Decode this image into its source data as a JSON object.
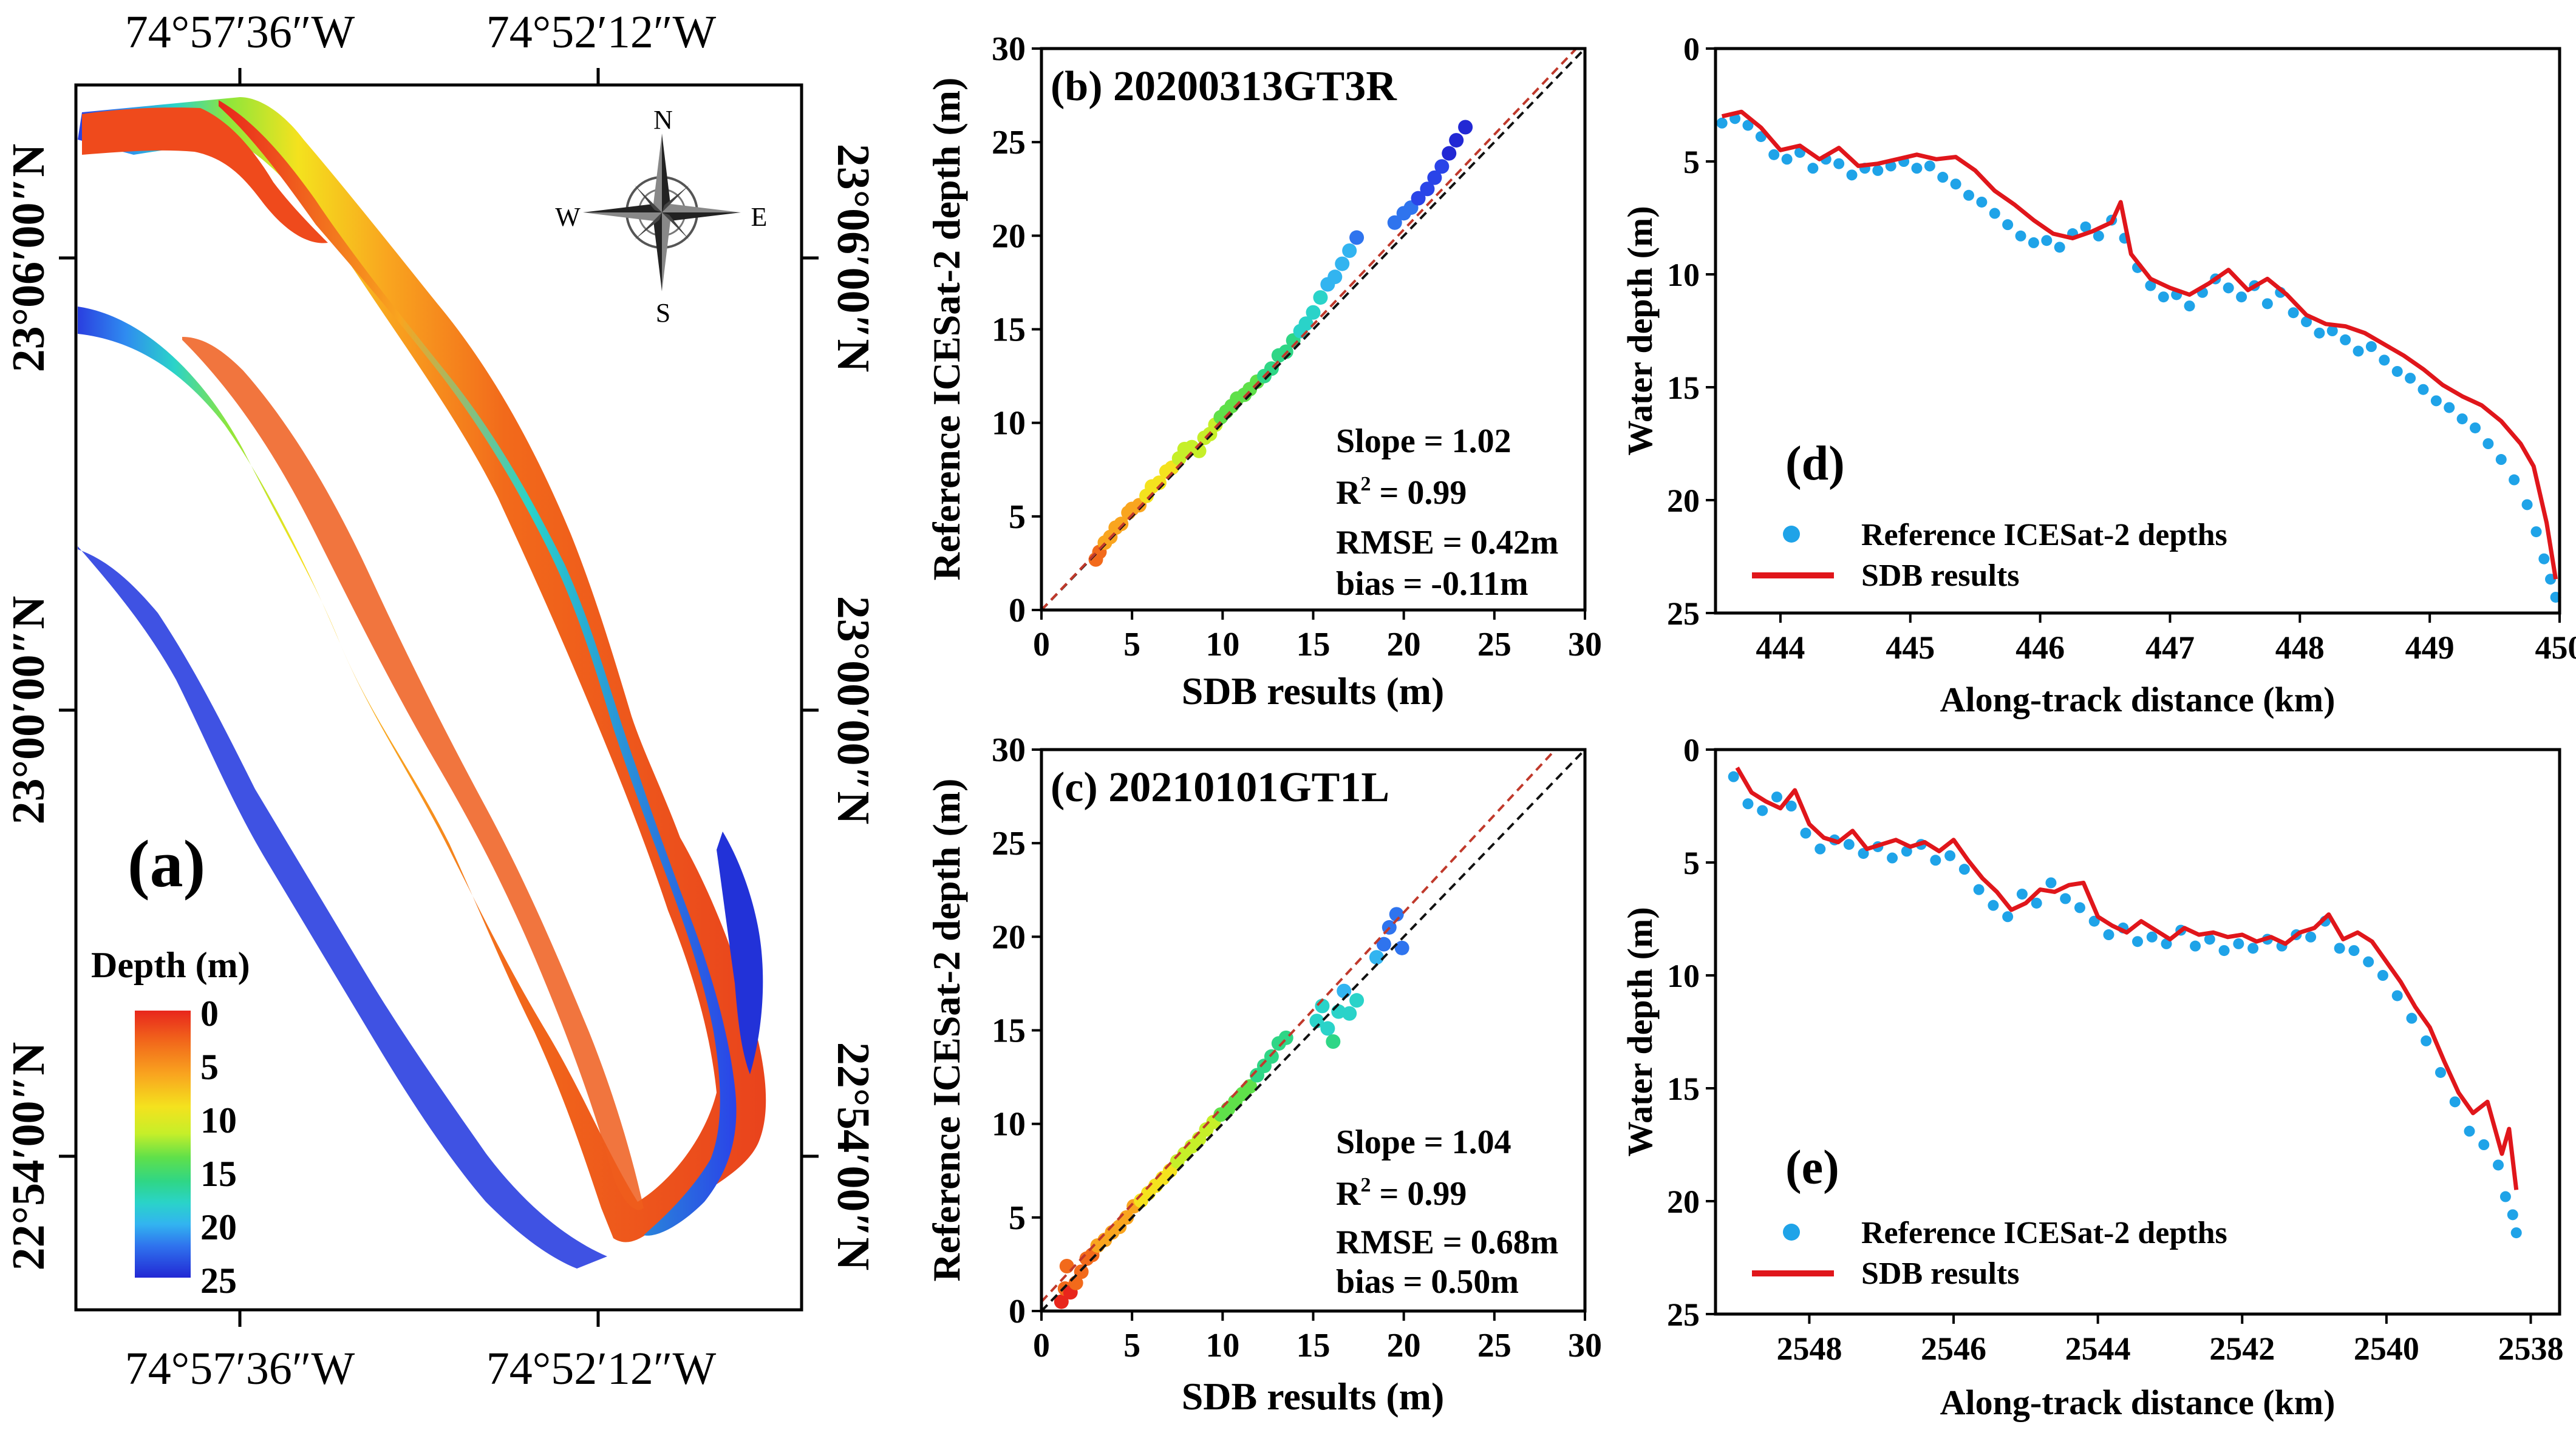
{
  "colors": {
    "ramp": [
      "#e8261c",
      "#f26a1b",
      "#f9a51f",
      "#f4e21e",
      "#c6ef29",
      "#5fe04a",
      "#2fd686",
      "#2ad3c9",
      "#32b4f0",
      "#2f74ee",
      "#2a44e8",
      "#2228d4"
    ],
    "ref_points": "#1fa3e8",
    "sdb_line": "#e0161b",
    "fit_line": "#c0392b",
    "one_to_one": "#111111"
  },
  "panel_a": {
    "label": "(a)",
    "top_lon_labels": [
      "74°57′36″W",
      "74°52′12″W"
    ],
    "bottom_lon_labels": [
      "74°57′36″W",
      "74°52′12″W"
    ],
    "left_lat_labels": [
      "23°06′00″N",
      "23°00′00″N",
      "22°54′00″N"
    ],
    "right_lat_labels": [
      "23°06′00″N",
      "23°00′00″N",
      "22°54′00″N"
    ],
    "compass": {
      "n": "N",
      "s": "S",
      "e": "E",
      "w": "W"
    },
    "legend_title": "Depth (m)",
    "legend_ticks": [
      "0",
      "5",
      "10",
      "15",
      "20",
      "25"
    ]
  },
  "chart_data": [
    {
      "id": "b",
      "type": "scatter",
      "title": "(b) 20200313GT3R",
      "xlabel": "SDB results (m)",
      "ylabel": "Reference ICESat-2 depth (m)",
      "xlim": [
        0,
        30
      ],
      "ylim": [
        0,
        30
      ],
      "xticks": [
        0,
        5,
        10,
        15,
        20,
        25,
        30
      ],
      "yticks": [
        0,
        5,
        10,
        15,
        20,
        25,
        30
      ],
      "stats": [
        "Slope = 1.02",
        "R",
        "2",
        " = 0.99",
        "RMSE = 0.42m",
        "bias = -0.11m"
      ],
      "fit": {
        "slope": 1.02,
        "intercept": -0.11
      },
      "points": [
        [
          3.0,
          2.7
        ],
        [
          3.2,
          3.1
        ],
        [
          3.5,
          3.6
        ],
        [
          3.8,
          3.9
        ],
        [
          4.1,
          4.4
        ],
        [
          4.4,
          4.6
        ],
        [
          4.8,
          5.2
        ],
        [
          5.0,
          5.4
        ],
        [
          5.4,
          5.6
        ],
        [
          5.8,
          6.1
        ],
        [
          6.1,
          6.6
        ],
        [
          6.5,
          6.8
        ],
        [
          6.9,
          7.4
        ],
        [
          7.2,
          7.6
        ],
        [
          7.6,
          8.1
        ],
        [
          7.9,
          8.6
        ],
        [
          8.3,
          8.7
        ],
        [
          8.7,
          8.5
        ],
        [
          9.0,
          9.2
        ],
        [
          9.3,
          9.4
        ],
        [
          9.6,
          9.9
        ],
        [
          9.9,
          10.3
        ],
        [
          10.2,
          10.6
        ],
        [
          10.5,
          10.9
        ],
        [
          10.8,
          11.3
        ],
        [
          11.2,
          11.5
        ],
        [
          11.5,
          11.8
        ],
        [
          11.9,
          12.2
        ],
        [
          12.3,
          12.5
        ],
        [
          12.7,
          12.9
        ],
        [
          13.1,
          13.6
        ],
        [
          13.5,
          13.8
        ],
        [
          13.9,
          14.4
        ],
        [
          14.3,
          14.9
        ],
        [
          14.6,
          15.3
        ],
        [
          15.0,
          15.9
        ],
        [
          15.4,
          16.7
        ],
        [
          15.8,
          17.4
        ],
        [
          16.2,
          17.8
        ],
        [
          16.6,
          18.5
        ],
        [
          17.0,
          19.2
        ],
        [
          17.4,
          19.9
        ],
        [
          19.5,
          20.7
        ],
        [
          20.0,
          21.2
        ],
        [
          20.4,
          21.5
        ],
        [
          20.8,
          22.0
        ],
        [
          21.3,
          22.5
        ],
        [
          21.7,
          23.1
        ],
        [
          22.1,
          23.7
        ],
        [
          22.5,
          24.4
        ],
        [
          22.9,
          25.1
        ],
        [
          23.4,
          25.8
        ]
      ]
    },
    {
      "id": "c",
      "type": "scatter",
      "title": "(c) 20210101GT1L",
      "xlabel": "SDB results (m)",
      "ylabel": "Reference ICESat-2 depth (m)",
      "xlim": [
        0,
        30
      ],
      "ylim": [
        0,
        30
      ],
      "xticks": [
        0,
        5,
        10,
        15,
        20,
        25,
        30
      ],
      "yticks": [
        0,
        5,
        10,
        15,
        20,
        25,
        30
      ],
      "stats": [
        "Slope = 1.04",
        "R",
        "2",
        " = 0.99",
        "RMSE = 0.68m",
        "bias = 0.50m"
      ],
      "fit": {
        "slope": 1.04,
        "intercept": 0.5
      },
      "points": [
        [
          1.1,
          0.5
        ],
        [
          1.3,
          1.2
        ],
        [
          1.4,
          2.4
        ],
        [
          1.6,
          1.0
        ],
        [
          1.9,
          1.5
        ],
        [
          2.2,
          2.1
        ],
        [
          2.5,
          2.8
        ],
        [
          2.8,
          3.0
        ],
        [
          3.1,
          3.5
        ],
        [
          3.5,
          3.8
        ],
        [
          3.9,
          4.2
        ],
        [
          4.3,
          4.5
        ],
        [
          4.7,
          5.0
        ],
        [
          5.1,
          5.6
        ],
        [
          5.5,
          5.9
        ],
        [
          5.9,
          6.3
        ],
        [
          6.3,
          6.7
        ],
        [
          6.7,
          7.1
        ],
        [
          7.1,
          7.5
        ],
        [
          7.5,
          8.0
        ],
        [
          7.9,
          8.4
        ],
        [
          8.3,
          8.8
        ],
        [
          8.7,
          9.2
        ],
        [
          9.1,
          9.7
        ],
        [
          9.5,
          10.1
        ],
        [
          9.9,
          10.5
        ],
        [
          10.3,
          10.8
        ],
        [
          10.7,
          11.2
        ],
        [
          11.1,
          11.6
        ],
        [
          11.5,
          12.0
        ],
        [
          11.9,
          12.6
        ],
        [
          12.3,
          13.1
        ],
        [
          12.7,
          13.6
        ],
        [
          13.1,
          14.3
        ],
        [
          13.5,
          14.6
        ],
        [
          15.2,
          15.5
        ],
        [
          15.5,
          16.3
        ],
        [
          15.8,
          15.1
        ],
        [
          16.1,
          14.4
        ],
        [
          16.4,
          16.0
        ],
        [
          16.7,
          17.1
        ],
        [
          17.0,
          15.9
        ],
        [
          17.4,
          16.6
        ],
        [
          18.5,
          18.9
        ],
        [
          18.9,
          19.6
        ],
        [
          19.2,
          20.5
        ],
        [
          19.6,
          21.2
        ],
        [
          19.9,
          19.4
        ]
      ]
    },
    {
      "id": "d",
      "type": "line",
      "xlabel": "Along-track distance (km)",
      "ylabel": "Water depth (m)",
      "xlim": [
        443.5,
        450
      ],
      "ylim": [
        0,
        25
      ],
      "y_inverted": true,
      "xticks": [
        444,
        445,
        446,
        447,
        448,
        449,
        450
      ],
      "yticks": [
        0,
        5,
        10,
        15,
        20,
        25
      ],
      "label": "(d)",
      "legend": [
        "Reference ICESat-2 depths",
        "SDB results"
      ],
      "series": [
        {
          "name": "SDB results",
          "x": [
            443.55,
            443.7,
            443.85,
            444.0,
            444.15,
            444.3,
            444.45,
            444.6,
            444.75,
            444.9,
            445.05,
            445.2,
            445.35,
            445.5,
            445.65,
            445.8,
            445.95,
            446.1,
            446.25,
            446.4,
            446.55,
            446.62,
            446.7,
            446.85,
            447.0,
            447.15,
            447.3,
            447.45,
            447.6,
            447.75,
            447.9,
            448.05,
            448.2,
            448.35,
            448.5,
            448.65,
            448.8,
            448.95,
            449.1,
            449.25,
            449.4,
            449.55,
            449.7,
            449.8,
            449.9,
            449.97
          ],
          "y": [
            3.0,
            2.8,
            3.5,
            4.5,
            4.3,
            4.9,
            4.4,
            5.2,
            5.1,
            4.9,
            4.7,
            4.9,
            4.8,
            5.4,
            6.3,
            6.9,
            7.6,
            8.2,
            8.4,
            8.1,
            7.7,
            6.8,
            9.1,
            10.2,
            10.6,
            10.9,
            10.4,
            9.8,
            10.7,
            10.2,
            10.9,
            11.8,
            12.2,
            12.3,
            12.6,
            13.1,
            13.6,
            14.2,
            14.9,
            15.4,
            15.8,
            16.5,
            17.5,
            18.5,
            21.0,
            23.5
          ]
        },
        {
          "name": "Reference ICESat-2 depths",
          "x": [
            443.55,
            443.65,
            443.75,
            443.85,
            443.95,
            444.05,
            444.15,
            444.25,
            444.35,
            444.45,
            444.55,
            444.65,
            444.75,
            444.85,
            444.95,
            445.05,
            445.15,
            445.25,
            445.35,
            445.45,
            445.55,
            445.65,
            445.75,
            445.85,
            445.95,
            446.05,
            446.15,
            446.25,
            446.35,
            446.45,
            446.55,
            446.65,
            446.75,
            446.85,
            446.95,
            447.05,
            447.15,
            447.25,
            447.35,
            447.45,
            447.55,
            447.65,
            447.75,
            447.85,
            447.95,
            448.05,
            448.15,
            448.25,
            448.35,
            448.45,
            448.55,
            448.65,
            448.75,
            448.85,
            448.95,
            449.05,
            449.15,
            449.25,
            449.35,
            449.45,
            449.55,
            449.65,
            449.75,
            449.82,
            449.88,
            449.93,
            449.97
          ],
          "y": [
            3.3,
            3.1,
            3.4,
            3.9,
            4.7,
            4.9,
            4.6,
            5.3,
            4.9,
            5.1,
            5.6,
            5.3,
            5.4,
            5.2,
            5.0,
            5.3,
            5.2,
            5.7,
            6.0,
            6.5,
            6.8,
            7.3,
            7.8,
            8.3,
            8.6,
            8.5,
            8.8,
            8.2,
            7.9,
            8.3,
            7.6,
            8.4,
            9.7,
            10.5,
            11.0,
            10.9,
            11.4,
            10.8,
            10.2,
            10.6,
            11.0,
            10.5,
            11.3,
            10.8,
            11.7,
            12.1,
            12.6,
            12.5,
            12.9,
            13.4,
            13.2,
            13.8,
            14.3,
            14.6,
            15.1,
            15.6,
            15.9,
            16.4,
            16.8,
            17.5,
            18.2,
            19.1,
            20.2,
            21.4,
            22.6,
            23.5,
            24.3
          ]
        }
      ]
    },
    {
      "id": "e",
      "type": "line",
      "xlabel": "Along-track distance (km)",
      "ylabel": "Water depth (m)",
      "xlim": [
        2549.3,
        2537.6
      ],
      "ylim": [
        0,
        25
      ],
      "y_inverted": true,
      "xticks": [
        2548,
        2546,
        2544,
        2542,
        2540,
        2538
      ],
      "yticks": [
        0,
        5,
        10,
        15,
        20,
        25
      ],
      "label": "(e)",
      "legend": [
        "Reference ICESat-2 depths",
        "SDB results"
      ],
      "series": [
        {
          "name": "SDB results",
          "x": [
            2549.0,
            2548.8,
            2548.6,
            2548.4,
            2548.2,
            2548.0,
            2547.8,
            2547.6,
            2547.4,
            2547.2,
            2547.0,
            2546.8,
            2546.6,
            2546.4,
            2546.2,
            2546.0,
            2545.8,
            2545.6,
            2545.4,
            2545.2,
            2545.0,
            2544.8,
            2544.6,
            2544.4,
            2544.2,
            2544.0,
            2543.8,
            2543.6,
            2543.4,
            2543.2,
            2543.0,
            2542.8,
            2542.6,
            2542.4,
            2542.2,
            2542.0,
            2541.8,
            2541.6,
            2541.4,
            2541.2,
            2541.0,
            2540.8,
            2540.6,
            2540.4,
            2540.2,
            2540.0,
            2539.8,
            2539.6,
            2539.4,
            2539.2,
            2539.0,
            2538.8,
            2538.6,
            2538.4,
            2538.3,
            2538.2
          ],
          "y": [
            0.8,
            1.9,
            2.3,
            2.6,
            1.8,
            3.3,
            3.9,
            4.1,
            3.6,
            4.4,
            4.2,
            4.0,
            4.3,
            4.1,
            4.5,
            4.0,
            4.9,
            5.7,
            6.3,
            7.1,
            6.8,
            6.2,
            6.3,
            6.0,
            5.9,
            7.4,
            7.8,
            8.1,
            7.6,
            8.0,
            8.4,
            7.9,
            8.2,
            8.1,
            8.3,
            8.2,
            8.5,
            8.3,
            8.6,
            8.1,
            7.9,
            7.3,
            8.4,
            8.1,
            8.5,
            9.4,
            10.3,
            11.4,
            12.3,
            13.8,
            15.2,
            16.1,
            15.6,
            17.9,
            16.8,
            19.5
          ]
        },
        {
          "name": "Reference ICESat-2 depths",
          "x": [
            2549.05,
            2548.85,
            2548.65,
            2548.45,
            2548.25,
            2548.05,
            2547.85,
            2547.65,
            2547.45,
            2547.25,
            2547.05,
            2546.85,
            2546.65,
            2546.45,
            2546.25,
            2546.05,
            2545.85,
            2545.65,
            2545.45,
            2545.25,
            2545.05,
            2544.85,
            2544.65,
            2544.45,
            2544.25,
            2544.05,
            2543.85,
            2543.65,
            2543.45,
            2543.25,
            2543.05,
            2542.85,
            2542.65,
            2542.45,
            2542.25,
            2542.05,
            2541.85,
            2541.65,
            2541.45,
            2541.25,
            2541.05,
            2540.85,
            2540.65,
            2540.45,
            2540.25,
            2540.05,
            2539.85,
            2539.65,
            2539.45,
            2539.25,
            2539.05,
            2538.85,
            2538.65,
            2538.45,
            2538.35,
            2538.25,
            2538.2
          ],
          "y": [
            1.2,
            2.4,
            2.7,
            2.1,
            2.5,
            3.7,
            4.4,
            4.0,
            4.2,
            4.6,
            4.3,
            4.8,
            4.5,
            4.2,
            4.9,
            4.7,
            5.3,
            6.2,
            6.9,
            7.4,
            6.4,
            6.8,
            5.9,
            6.6,
            7.0,
            7.6,
            8.2,
            7.9,
            8.5,
            8.3,
            8.6,
            8.0,
            8.7,
            8.4,
            8.9,
            8.6,
            8.8,
            8.4,
            8.7,
            8.2,
            8.3,
            7.6,
            8.8,
            8.9,
            9.4,
            10.0,
            10.9,
            11.9,
            12.9,
            14.3,
            15.6,
            16.9,
            17.5,
            18.4,
            19.8,
            20.6,
            21.4
          ]
        }
      ]
    }
  ]
}
